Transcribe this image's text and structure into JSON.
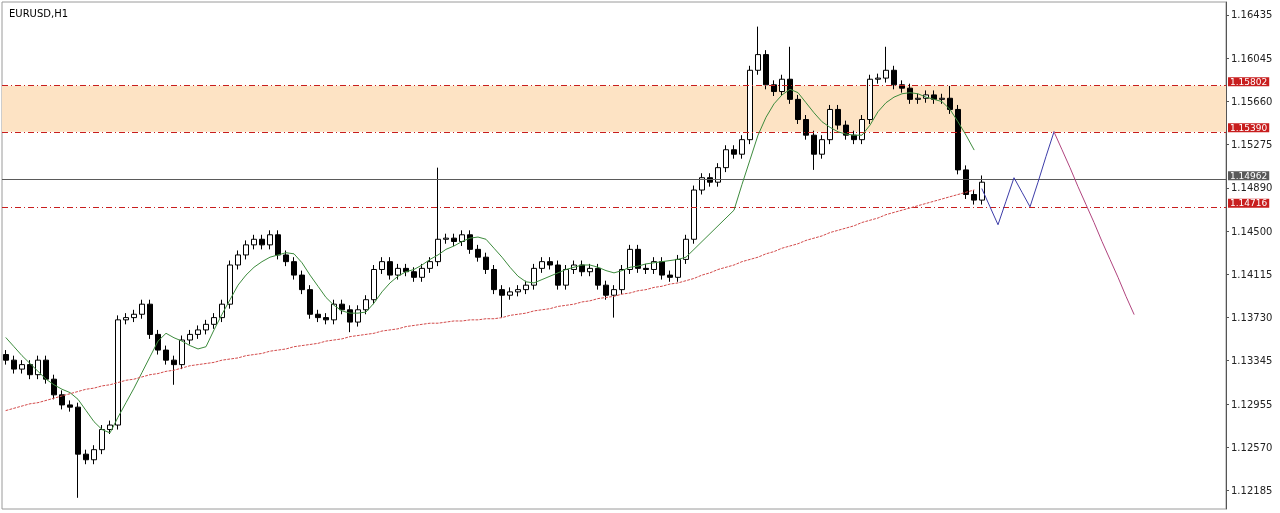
{
  "chart_data": {
    "type": "candlestick",
    "title": "EURUSD,H1",
    "color": "#000000",
    "categories": [
      null,
      null,
      null,
      null,
      null,
      null,
      null,
      null,
      null,
      null,
      null,
      null,
      null,
      null,
      null,
      null,
      null,
      null,
      null,
      null,
      null,
      null,
      null,
      null,
      null,
      null,
      null,
      null,
      null,
      null,
      null,
      null,
      null,
      null,
      null,
      null,
      null,
      null,
      null,
      null,
      null,
      null,
      null,
      null,
      null,
      null,
      null,
      null,
      null,
      null,
      null,
      null,
      null,
      null,
      null,
      null,
      null,
      null,
      null,
      null,
      null,
      null,
      null,
      null,
      null,
      null,
      null,
      null,
      null,
      null,
      null,
      null,
      null,
      null,
      null,
      null,
      null,
      null,
      null,
      null,
      null,
      null,
      null,
      null,
      null,
      null,
      null,
      null,
      null,
      null,
      null,
      null,
      null,
      null,
      null,
      null,
      null,
      null,
      null,
      null,
      null,
      null,
      null,
      null,
      null,
      null,
      null,
      null,
      null,
      null,
      null,
      null,
      null,
      null,
      null,
      null,
      null,
      null,
      null,
      null,
      null,
      null,
      null,
      null,
      null,
      null,
      null,
      null,
      null,
      null,
      null,
      null,
      null,
      null,
      null,
      null,
      null,
      null,
      null,
      null,
      null,
      null,
      null,
      null,
      null,
      null,
      null,
      null,
      null,
      null,
      null,
      null,
      null
    ],
    "ohlc": [
      [
        1.134,
        1.1344,
        1.1331,
        1.1335
      ],
      [
        1.1335,
        1.1339,
        1.1323,
        1.1327
      ],
      [
        1.1327,
        1.1335,
        1.1323,
        1.1331
      ],
      [
        1.1331,
        1.1335,
        1.1318,
        1.1322
      ],
      [
        1.1322,
        1.1339,
        1.1318,
        1.1335
      ],
      [
        1.1335,
        1.1339,
        1.1314,
        1.1318
      ],
      [
        1.1318,
        1.1322,
        1.13,
        1.1304
      ],
      [
        1.1304,
        1.1308,
        1.1291,
        1.1295
      ],
      [
        1.1295,
        1.1299,
        1.1289,
        1.1293
      ],
      [
        1.1293,
        1.1297,
        1.1212,
        1.1251
      ],
      [
        1.1251,
        1.1255,
        1.1242,
        1.1246
      ],
      [
        1.1246,
        1.1259,
        1.1242,
        1.1255
      ],
      [
        1.1255,
        1.1277,
        1.1251,
        1.1273
      ],
      [
        1.1273,
        1.1281,
        1.1269,
        1.1277
      ],
      [
        1.1277,
        1.1375,
        1.1273,
        1.1371
      ],
      [
        1.1371,
        1.1377,
        1.1367,
        1.1373
      ],
      [
        1.1373,
        1.138,
        1.1369,
        1.1376
      ],
      [
        1.1376,
        1.1389,
        1.1372,
        1.1385
      ],
      [
        1.1385,
        1.1389,
        1.1354,
        1.1358
      ],
      [
        1.1358,
        1.1362,
        1.134,
        1.1344
      ],
      [
        1.1344,
        1.1348,
        1.1331,
        1.1335
      ],
      [
        1.1335,
        1.1339,
        1.1313,
        1.1331
      ],
      [
        1.1331,
        1.1357,
        1.1327,
        1.1353
      ],
      [
        1.1353,
        1.1362,
        1.1349,
        1.1358
      ],
      [
        1.1358,
        1.1366,
        1.1354,
        1.1362
      ],
      [
        1.1362,
        1.1371,
        1.1358,
        1.1367
      ],
      [
        1.1367,
        1.1377,
        1.1363,
        1.1373
      ],
      [
        1.1373,
        1.1389,
        1.1369,
        1.1385
      ],
      [
        1.1385,
        1.1424,
        1.1381,
        1.142
      ],
      [
        1.142,
        1.1433,
        1.1416,
        1.1429
      ],
      [
        1.1429,
        1.1442,
        1.1425,
        1.1438
      ],
      [
        1.1438,
        1.1447,
        1.1434,
        1.1443
      ],
      [
        1.1443,
        1.1447,
        1.1434,
        1.1438
      ],
      [
        1.1438,
        1.1451,
        1.1434,
        1.1447
      ],
      [
        1.1447,
        1.1451,
        1.1425,
        1.1429
      ],
      [
        1.1429,
        1.1433,
        1.1419,
        1.1423
      ],
      [
        1.1423,
        1.1427,
        1.1407,
        1.1411
      ],
      [
        1.1411,
        1.1415,
        1.1394,
        1.1398
      ],
      [
        1.1398,
        1.1402,
        1.1372,
        1.1376
      ],
      [
        1.1376,
        1.138,
        1.1369,
        1.1373
      ],
      [
        1.1373,
        1.1377,
        1.1367,
        1.1371
      ],
      [
        1.1371,
        1.1389,
        1.1367,
        1.1385
      ],
      [
        1.1385,
        1.1389,
        1.1376,
        1.138
      ],
      [
        1.138,
        1.1384,
        1.136,
        1.1369
      ],
      [
        1.1369,
        1.1384,
        1.1365,
        1.138
      ],
      [
        1.138,
        1.1393,
        1.1376,
        1.1389
      ],
      [
        1.1389,
        1.142,
        1.1385,
        1.1416
      ],
      [
        1.1416,
        1.1427,
        1.1412,
        1.1423
      ],
      [
        1.1423,
        1.1427,
        1.1407,
        1.1411
      ],
      [
        1.1411,
        1.1421,
        1.1407,
        1.1417
      ],
      [
        1.1417,
        1.1421,
        1.141,
        1.1414
      ],
      [
        1.1414,
        1.1418,
        1.1405,
        1.1409
      ],
      [
        1.1409,
        1.1421,
        1.1405,
        1.1417
      ],
      [
        1.1417,
        1.1427,
        1.1413,
        1.1423
      ],
      [
        1.1423,
        1.1507,
        1.1419,
        1.1443
      ],
      [
        1.1443,
        1.1448,
        1.1439,
        1.1444
      ],
      [
        1.1444,
        1.1448,
        1.1437,
        1.1441
      ],
      [
        1.1441,
        1.1451,
        1.1437,
        1.1447
      ],
      [
        1.1447,
        1.1451,
        1.143,
        1.1434
      ],
      [
        1.1434,
        1.1438,
        1.1423,
        1.1427
      ],
      [
        1.1427,
        1.1431,
        1.1412,
        1.1416
      ],
      [
        1.1416,
        1.142,
        1.1394,
        1.1398
      ],
      [
        1.1398,
        1.1402,
        1.1373,
        1.1393
      ],
      [
        1.1393,
        1.14,
        1.1389,
        1.1396
      ],
      [
        1.1396,
        1.1402,
        1.1392,
        1.1398
      ],
      [
        1.1398,
        1.1406,
        1.1394,
        1.1402
      ],
      [
        1.1402,
        1.1421,
        1.1398,
        1.1417
      ],
      [
        1.1417,
        1.1427,
        1.1413,
        1.1423
      ],
      [
        1.1423,
        1.1427,
        1.1416,
        1.142
      ],
      [
        1.142,
        1.1424,
        1.1398,
        1.1402
      ],
      [
        1.1402,
        1.142,
        1.1398,
        1.1416
      ],
      [
        1.1416,
        1.1424,
        1.1412,
        1.142
      ],
      [
        1.142,
        1.1424,
        1.141,
        1.1414
      ],
      [
        1.1414,
        1.1421,
        1.141,
        1.1417
      ],
      [
        1.1417,
        1.1421,
        1.1398,
        1.1402
      ],
      [
        1.1402,
        1.1406,
        1.1389,
        1.1393
      ],
      [
        1.1393,
        1.1402,
        1.1373,
        1.1398
      ],
      [
        1.1398,
        1.142,
        1.1394,
        1.1416
      ],
      [
        1.1416,
        1.1438,
        1.1412,
        1.1434
      ],
      [
        1.1434,
        1.1438,
        1.1413,
        1.1417
      ],
      [
        1.1417,
        1.1421,
        1.1412,
        1.1416
      ],
      [
        1.1416,
        1.1427,
        1.1412,
        1.1423
      ],
      [
        1.1423,
        1.1427,
        1.1407,
        1.1411
      ],
      [
        1.1411,
        1.1415,
        1.1405,
        1.1409
      ],
      [
        1.1409,
        1.1429,
        1.1405,
        1.1425
      ],
      [
        1.1425,
        1.1447,
        1.1421,
        1.1443
      ],
      [
        1.1443,
        1.1491,
        1.1439,
        1.1487
      ],
      [
        1.1487,
        1.1502,
        1.1483,
        1.1498
      ],
      [
        1.1498,
        1.1502,
        1.149,
        1.1494
      ],
      [
        1.1494,
        1.1511,
        1.149,
        1.1507
      ],
      [
        1.1507,
        1.1527,
        1.1503,
        1.1523
      ],
      [
        1.1523,
        1.1527,
        1.1515,
        1.1519
      ],
      [
        1.1519,
        1.1536,
        1.1515,
        1.1532
      ],
      [
        1.1532,
        1.1598,
        1.1528,
        1.1594
      ],
      [
        1.1594,
        1.1633,
        1.159,
        1.1608
      ],
      [
        1.1608,
        1.1612,
        1.1577,
        1.1581
      ],
      [
        1.1581,
        1.1585,
        1.1571,
        1.1575
      ],
      [
        1.1575,
        1.159,
        1.1571,
        1.1586
      ],
      [
        1.1586,
        1.1615,
        1.1564,
        1.1568
      ],
      [
        1.1568,
        1.1572,
        1.1546,
        1.155
      ],
      [
        1.155,
        1.1554,
        1.1532,
        1.1536
      ],
      [
        1.1536,
        1.154,
        1.1505,
        1.1519
      ],
      [
        1.1519,
        1.1536,
        1.1515,
        1.1532
      ],
      [
        1.1532,
        1.1563,
        1.1528,
        1.1559
      ],
      [
        1.1559,
        1.1563,
        1.1541,
        1.1545
      ],
      [
        1.1545,
        1.1549,
        1.1532,
        1.1536
      ],
      [
        1.1536,
        1.154,
        1.1528,
        1.1532
      ],
      [
        1.1532,
        1.1554,
        1.1528,
        1.155
      ],
      [
        1.155,
        1.159,
        1.1546,
        1.1586
      ],
      [
        1.1586,
        1.1591,
        1.1582,
        1.1587
      ],
      [
        1.1587,
        1.1615,
        1.1583,
        1.1594
      ],
      [
        1.1594,
        1.1598,
        1.1577,
        1.1581
      ],
      [
        1.1581,
        1.1585,
        1.1574,
        1.1578
      ],
      [
        1.1578,
        1.1582,
        1.1564,
        1.1568
      ],
      [
        1.1568,
        1.1573,
        1.1564,
        1.1569
      ],
      [
        1.1569,
        1.1576,
        1.1565,
        1.1572
      ],
      [
        1.1572,
        1.1576,
        1.1564,
        1.1568
      ],
      [
        1.1568,
        1.1573,
        1.1564,
        1.1569
      ],
      [
        1.1569,
        1.158,
        1.1555,
        1.1559
      ],
      [
        1.1559,
        1.1563,
        1.1501,
        1.1505
      ],
      [
        1.1505,
        1.1509,
        1.1479,
        1.1483
      ],
      [
        1.1483,
        1.1487,
        1.1474,
        1.1478
      ],
      [
        1.1478,
        1.15,
        1.1474,
        1.1494
      ],
      null,
      null,
      null,
      null,
      null,
      null,
      null,
      null,
      null,
      null,
      null,
      null,
      null,
      null,
      null,
      null,
      null,
      null,
      null,
      null,
      null,
      null,
      null,
      null,
      null,
      null,
      null,
      null,
      null,
      null
    ],
    "series": [
      {
        "type": "line",
        "color": "#3d8b3d",
        "line_style": "solid",
        "values": [
          1.1355,
          1.1347,
          1.1339,
          1.1332,
          1.1325,
          1.1318,
          1.1313,
          1.1309,
          1.1306,
          1.13,
          1.129,
          1.128,
          1.1273,
          1.127,
          1.1284,
          1.1297,
          1.131,
          1.1324,
          1.1338,
          1.1352,
          1.1359,
          1.1355,
          1.1352,
          1.1348,
          1.1345,
          1.1347,
          1.1362,
          1.1376,
          1.1389,
          1.1402,
          1.1411,
          1.1418,
          1.1423,
          1.1427,
          1.1429,
          1.1431,
          1.143,
          1.1422,
          1.1411,
          1.1401,
          1.1391,
          1.1384,
          1.1379,
          1.1377,
          1.1377,
          1.1378,
          1.1386,
          1.1396,
          1.1404,
          1.141,
          1.1414,
          1.1416,
          1.142,
          1.1425,
          1.1429,
          1.1434,
          1.1437,
          1.1441,
          1.1444,
          1.1445,
          1.1443,
          1.1435,
          1.1427,
          1.1418,
          1.141,
          1.1405,
          1.1404,
          1.1407,
          1.141,
          1.1413,
          1.1416,
          1.1418,
          1.142,
          1.142,
          1.1418,
          1.1415,
          1.1413,
          1.1415,
          1.1418,
          1.1419,
          1.1421,
          1.1422,
          1.1423,
          1.1424,
          1.1425,
          1.1427,
          1.1434,
          1.1441,
          1.1448,
          1.1455,
          1.1462,
          1.1469,
          1.1492,
          1.1514,
          1.1536,
          1.1552,
          1.1564,
          1.1572,
          1.1577,
          1.1574,
          1.1565,
          1.1556,
          1.1548,
          1.1543,
          1.1539,
          1.1537,
          1.1536,
          1.1536,
          1.1545,
          1.1557,
          1.1565,
          1.157,
          1.1573,
          1.1574,
          1.1573,
          1.157,
          1.1568,
          1.1566,
          1.1559,
          1.1548,
          1.1536,
          1.1523,
          null,
          null,
          null,
          null,
          null,
          null,
          null,
          null,
          null,
          null,
          null,
          null,
          null,
          null,
          null,
          null,
          null,
          null,
          null,
          null,
          null,
          null,
          null,
          null,
          null,
          null,
          null,
          null,
          null,
          null,
          null
        ]
      },
      {
        "type": "line",
        "color": "#d24b4b",
        "line_style": "dotted",
        "values": [
          1.129,
          1.1292,
          1.1294,
          1.1296,
          1.1297,
          1.1299,
          1.1301,
          1.1303,
          1.1305,
          1.1307,
          1.1309,
          1.131,
          1.1312,
          1.1313,
          1.1315,
          1.1317,
          1.1318,
          1.132,
          1.1322,
          1.1323,
          1.1325,
          1.1326,
          1.1328,
          1.133,
          1.1331,
          1.1332,
          1.1333,
          1.1335,
          1.1336,
          1.1337,
          1.1339,
          1.134,
          1.1341,
          1.1343,
          1.1344,
          1.1345,
          1.1347,
          1.1348,
          1.1349,
          1.135,
          1.1352,
          1.1353,
          1.1354,
          1.1356,
          1.1357,
          1.1358,
          1.1359,
          1.1361,
          1.1362,
          1.1363,
          1.1365,
          1.1366,
          1.1367,
          1.1368,
          1.1368,
          1.1369,
          1.137,
          1.137,
          1.1371,
          1.1371,
          1.1372,
          1.1372,
          1.1373,
          1.1375,
          1.1376,
          1.1377,
          1.1379,
          1.138,
          1.1381,
          1.1383,
          1.1384,
          1.1385,
          1.1387,
          1.1388,
          1.139,
          1.1391,
          1.1392,
          1.1394,
          1.1395,
          1.1397,
          1.1398,
          1.14,
          1.1401,
          1.1403,
          1.1404,
          1.1406,
          1.1408,
          1.1411,
          1.1413,
          1.1416,
          1.1418,
          1.142,
          1.1423,
          1.1425,
          1.1427,
          1.143,
          1.1432,
          1.1435,
          1.1437,
          1.1439,
          1.1442,
          1.1444,
          1.1446,
          1.1449,
          1.1451,
          1.1453,
          1.1455,
          1.1458,
          1.146,
          1.1462,
          1.1465,
          1.1467,
          1.1469,
          1.1471,
          1.1473,
          1.1475,
          1.1477,
          1.1479,
          1.1481,
          1.1483,
          1.1485,
          1.1487,
          null,
          null,
          null,
          null,
          null,
          null,
          null,
          null,
          null,
          null,
          null,
          null,
          null,
          null,
          null,
          null,
          null,
          null,
          null,
          null,
          null,
          null,
          null,
          null,
          null,
          null,
          null,
          null,
          null,
          null,
          null
        ]
      },
      {
        "type": "line",
        "color": "#3c3ca8",
        "line_style": "solid",
        "values": [
          null,
          null,
          null,
          null,
          null,
          null,
          null,
          null,
          null,
          null,
          null,
          null,
          null,
          null,
          null,
          null,
          null,
          null,
          null,
          null,
          null,
          null,
          null,
          null,
          null,
          null,
          null,
          null,
          null,
          null,
          null,
          null,
          null,
          null,
          null,
          null,
          null,
          null,
          null,
          null,
          null,
          null,
          null,
          null,
          null,
          null,
          null,
          null,
          null,
          null,
          null,
          null,
          null,
          null,
          null,
          null,
          null,
          null,
          null,
          null,
          null,
          null,
          null,
          null,
          null,
          null,
          null,
          null,
          null,
          null,
          null,
          null,
          null,
          null,
          null,
          null,
          null,
          null,
          null,
          null,
          null,
          null,
          null,
          null,
          null,
          null,
          null,
          null,
          null,
          null,
          null,
          null,
          null,
          null,
          null,
          null,
          null,
          null,
          null,
          null,
          null,
          null,
          null,
          null,
          null,
          null,
          null,
          null,
          null,
          null,
          null,
          null,
          null,
          null,
          null,
          null,
          null,
          null,
          null,
          null,
          null,
          null,
          1.1488,
          1.1472,
          1.1456,
          1.1477,
          1.1498,
          1.1485,
          1.1472,
          1.1494,
          1.1517,
          1.1539,
          null,
          null,
          null,
          null,
          null,
          null,
          null,
          null,
          null,
          null,
          null,
          null,
          null,
          null,
          null,
          null,
          null,
          null,
          null,
          null,
          null
        ]
      },
      {
        "type": "line",
        "color": "#b0447e",
        "line_style": "solid",
        "values": [
          null,
          null,
          null,
          null,
          null,
          null,
          null,
          null,
          null,
          null,
          null,
          null,
          null,
          null,
          null,
          null,
          null,
          null,
          null,
          null,
          null,
          null,
          null,
          null,
          null,
          null,
          null,
          null,
          null,
          null,
          null,
          null,
          null,
          null,
          null,
          null,
          null,
          null,
          null,
          null,
          null,
          null,
          null,
          null,
          null,
          null,
          null,
          null,
          null,
          null,
          null,
          null,
          null,
          null,
          null,
          null,
          null,
          null,
          null,
          null,
          null,
          null,
          null,
          null,
          null,
          null,
          null,
          null,
          null,
          null,
          null,
          null,
          null,
          null,
          null,
          null,
          null,
          null,
          null,
          null,
          null,
          null,
          null,
          null,
          null,
          null,
          null,
          null,
          null,
          null,
          null,
          null,
          null,
          null,
          null,
          null,
          null,
          null,
          null,
          null,
          null,
          null,
          null,
          null,
          null,
          null,
          null,
          null,
          null,
          null,
          null,
          null,
          null,
          null,
          null,
          null,
          null,
          null,
          null,
          null,
          null,
          null,
          null,
          null,
          null,
          null,
          null,
          null,
          null,
          null,
          null,
          1.1539,
          1.1523,
          1.1507,
          1.149,
          1.1474,
          1.1458,
          1.1441,
          1.1425,
          1.1409,
          1.1392,
          1.1376,
          null,
          null,
          null,
          null,
          null,
          null,
          null,
          null,
          null,
          null,
          null
        ]
      }
    ],
    "ylim": [
      1.1202,
      1.1655
    ],
    "yticks": [
      1.16435,
      1.16045,
      {
        "value": 1.1566,
        "label": "1.15660"
      },
      1.15275,
      {
        "value": 1.1489,
        "label": "1.14890"
      },
      {
        "value": 1.145,
        "label": "1.14500"
      },
      1.14115,
      {
        "value": 1.1373,
        "label": "1.13730"
      },
      1.13345,
      1.12955,
      {
        "value": 1.1257,
        "label": "1.12570"
      },
      1.12185
    ],
    "ref_lines": [
      {
        "axis": "y",
        "value": 1.15802,
        "label": "1.15802",
        "color": "#c81e1e",
        "line_style": "dashed"
      },
      {
        "axis": "y",
        "value": 1.1539,
        "label": "1.15390",
        "color": "#c81e1e",
        "line_style": "dashed"
      },
      {
        "axis": "y",
        "value": 1.14962,
        "label": "1.14962",
        "color": "#5a5a5a",
        "line_style": "solid"
      },
      {
        "axis": "y",
        "value": 1.14716,
        "label": "1.14716",
        "color": "#c81e1e",
        "line_style": "dashed"
      }
    ],
    "bands": [
      {
        "axis": "y",
        "from": 1.1539,
        "to": 1.15802,
        "color": "#fde3c4"
      }
    ],
    "tick_labels": "y"
  }
}
